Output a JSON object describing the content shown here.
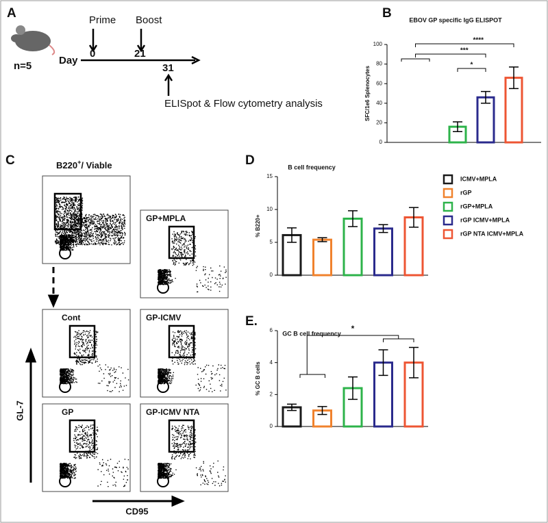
{
  "panel_labels": [
    "A",
    "B",
    "C",
    "D",
    "E."
  ],
  "timeline": {
    "n": "n=5",
    "day": "Day",
    "prime": "Prime",
    "prime_day": "0",
    "boost": "Boost",
    "boost_day": "21",
    "analysis_day": "31",
    "analysis": "ELISpot & Flow cytometry analysis"
  },
  "flow": {
    "gate_title": "B220",
    "gate_sup": "+",
    "gate_rest": "/ Viable",
    "plots": [
      "GP+MPLA",
      "Cont",
      "GP-ICMV",
      "GP",
      "GP-ICMV NTA"
    ],
    "y_axis": "GL-7",
    "x_axis": "CD95"
  },
  "legend": [
    {
      "name": "ICMV+MPLA",
      "color": "#1a1a1a"
    },
    {
      "name": "rGP",
      "color": "#f0822d"
    },
    {
      "name": "rGP+MPLA",
      "color": "#2db34a"
    },
    {
      "name": "rGP ICMV+MPLA",
      "color": "#2a2a8c"
    },
    {
      "name": "rGP NTA ICMV+MPLA",
      "color": "#ee5533"
    }
  ],
  "chart_data": [
    {
      "type": "bar",
      "title": "EBOV GP specific IgG ELISPOT",
      "y_label": "SFC/1e6 Splenocytes",
      "values": [
        0,
        0,
        16,
        46,
        66
      ],
      "errors": [
        0,
        0,
        5,
        6,
        11
      ],
      "ylim": [
        0,
        100
      ],
      "yticks": [
        0,
        20,
        40,
        60,
        80,
        100
      ],
      "annotations": [
        "****",
        "***",
        "*"
      ]
    },
    {
      "type": "bar",
      "title": "B cell frequency",
      "y_label": "% B220+",
      "values": [
        6.1,
        5.4,
        8.6,
        7.1,
        8.8
      ],
      "errors": [
        1.1,
        0.3,
        1.2,
        0.6,
        1.5
      ],
      "ylim": [
        0,
        15
      ],
      "yticks": [
        0,
        5,
        10,
        15
      ]
    },
    {
      "type": "bar",
      "title": "GC B cell frequency",
      "y_label": "% GC B cells",
      "values": [
        1.2,
        1.0,
        2.4,
        4.0,
        4.0
      ],
      "errors": [
        0.2,
        0.25,
        0.7,
        0.8,
        0.95
      ],
      "ylim": [
        0,
        6
      ],
      "yticks": [
        0,
        2,
        4,
        6
      ],
      "annotations": [
        "*"
      ]
    }
  ]
}
